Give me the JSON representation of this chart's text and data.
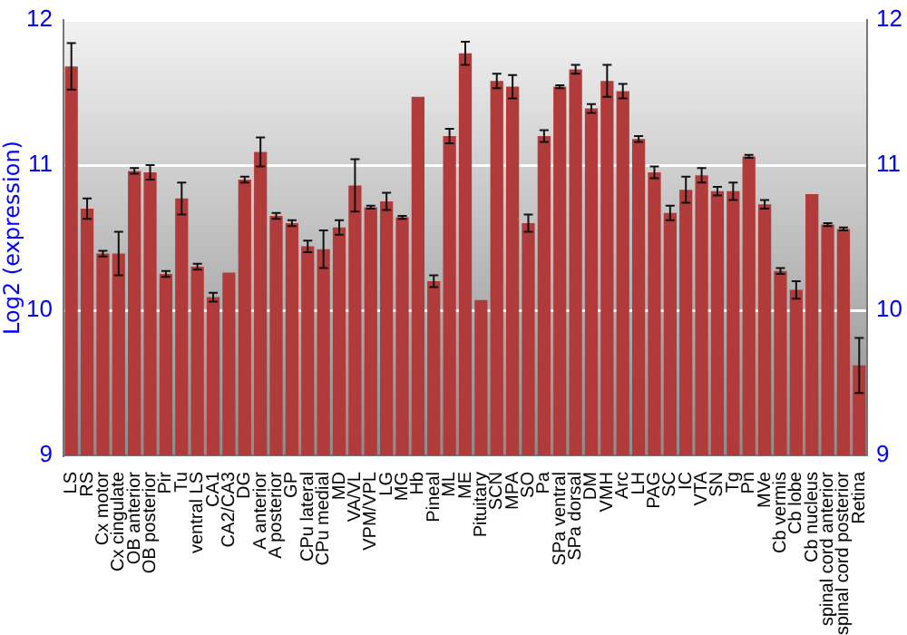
{
  "chart_data": {
    "type": "bar",
    "ylabel": "Log2 (expression)",
    "categories": [
      "LS",
      "RS",
      "Cx motor",
      "Cx cingulate",
      "OB anterior",
      "OB posterior",
      "Pir",
      "Tu",
      "ventral LS",
      "CA1",
      "CA2/CA3",
      "DG",
      "A anterior",
      "A posterior",
      "GP",
      "CPu lateral",
      "CPu medial",
      "MD",
      "VA/VL",
      "VPM/VPL",
      "LG",
      "MG",
      "Hb",
      "Pineal",
      "ML",
      "ME",
      "Pituitary",
      "SCN",
      "MPA",
      "SO",
      "Pa",
      "SPa ventral",
      "SPa dorsal",
      "DM",
      "VMH",
      "Arc",
      "LH",
      "PAG",
      "SC",
      "IC",
      "VTA",
      "SN",
      "Tg",
      "Pn",
      "MVe",
      "Cb vermis",
      "Cb lobe",
      "Cb nucleus",
      "spinal cord anterior",
      "spinal cord posterior",
      "Retina"
    ],
    "values": [
      11.68,
      10.7,
      10.39,
      10.39,
      10.96,
      10.95,
      10.25,
      10.77,
      10.3,
      10.09,
      10.26,
      10.9,
      11.09,
      10.65,
      10.6,
      10.44,
      10.42,
      10.57,
      10.86,
      10.71,
      10.75,
      10.64,
      11.47,
      10.2,
      11.2,
      11.77,
      10.07,
      11.58,
      11.54,
      10.6,
      11.2,
      11.54,
      11.66,
      11.39,
      11.58,
      11.51,
      11.18,
      10.95,
      10.67,
      10.83,
      10.93,
      10.82,
      10.82,
      11.06,
      10.73,
      10.27,
      10.14,
      10.8,
      10.59,
      10.56,
      9.62
    ],
    "errors": [
      0.16,
      0.07,
      0.02,
      0.15,
      0.02,
      0.05,
      0.02,
      0.11,
      0.02,
      0.03,
      null,
      0.02,
      0.1,
      0.02,
      0.02,
      0.04,
      0.13,
      0.05,
      0.18,
      0.01,
      0.06,
      0.01,
      null,
      0.04,
      0.05,
      0.08,
      null,
      0.05,
      0.08,
      0.06,
      0.04,
      0.01,
      0.03,
      0.03,
      0.11,
      0.05,
      0.02,
      0.04,
      0.05,
      0.09,
      0.05,
      0.03,
      0.06,
      0.01,
      0.03,
      0.02,
      0.06,
      null,
      0.01,
      0.01,
      0.19
    ],
    "color": "#b13b3b",
    "ylim": [
      9,
      12
    ],
    "yticks": [
      9,
      10,
      11,
      12
    ],
    "y2lim": [
      9,
      12
    ],
    "y2ticks": [
      9,
      10,
      11,
      12
    ],
    "grid": "y",
    "legend": false
  }
}
